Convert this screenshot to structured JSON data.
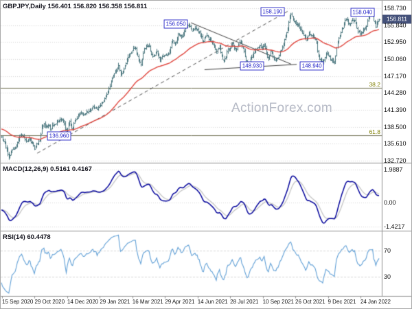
{
  "colors": {
    "background": "#ffffff",
    "border": "#a8a8a8",
    "bar": "#47747c",
    "ma_line": "#e0443c",
    "macd_line": "#00009a",
    "macd_signal": "#c4c4c4",
    "rsi_line": "#5f9fd6",
    "marker_border": "#3434c8",
    "marker_text": "#2222c8",
    "current_tag_bg": "#44517a",
    "fib_line": "#6f6f52",
    "fib_label": "#7f7f00",
    "grid": "#d6d6d6",
    "separator": "#8f8f8f",
    "trendline_dashed": "#4d4d4d",
    "trendline_solid": "#3c3c3c",
    "axis_text": "#111111",
    "title_text": "#15151f",
    "watermark": "#b6bac6"
  },
  "price_panel": {
    "title": "GBPJPY,Daily 156.401 156.820 156.358 156.811",
    "watermark": "ActionForex.com",
    "axis_ticks": [
      "158.730",
      "155.840",
      "152.950",
      "150.060",
      "147.170",
      "144.280",
      "141.390",
      "138.500",
      "135.610",
      "132.720"
    ],
    "current_price": "156.811"
  },
  "macd_panel": {
    "title": "MACD(12,26,9) 0.5161 0.4167",
    "axis_ticks": [
      "1.9887",
      "0.00",
      "-1.4217"
    ]
  },
  "rsi_panel": {
    "title": "RSI(14) 60.4478",
    "axis_ticks": [
      "70",
      "30"
    ],
    "levels": [
      70,
      30
    ]
  },
  "x_axis": {
    "labels": [
      "15 Sep 2020",
      "29 Oct 2020",
      "14 Dec 2020",
      "29 Jan 2021",
      "16 Mar 2021",
      "29 Apr 2021",
      "14 Jun 2021",
      "28 Jul 2021",
      "10 Sep 2021",
      "26 Oct 2021",
      "9 Dec 2021",
      "24 Jan 2022"
    ]
  },
  "chart_data": {
    "type": "candlestick",
    "type_note": "MT4-style daily OHLC bar chart with MACD and RSI sub-panels; close_anchors are sampled closes [t 0..1, price]",
    "title": "GBPJPY,Daily",
    "ylim": [
      132.4,
      159.2
    ],
    "y_tick_labels": [
      "158.730",
      "155.840",
      "152.950",
      "150.060",
      "147.170",
      "144.280",
      "141.390",
      "138.500",
      "135.610",
      "132.720"
    ],
    "x_tick_labels": [
      "15 Sep 2020",
      "29 Oct 2020",
      "14 Dec 2020",
      "29 Jan 2021",
      "16 Mar 2021",
      "29 Apr 2021",
      "14 Jun 2021",
      "28 Jul 2021",
      "10 Sep 2021",
      "26 Oct 2021",
      "9 Dec 2021",
      "24 Jan 2022"
    ],
    "ohlc_current": {
      "open": 156.401,
      "high": 156.82,
      "low": 156.358,
      "close": 156.811
    },
    "close_anchors": [
      [
        0.0,
        136.8
      ],
      [
        0.012,
        135.0
      ],
      [
        0.02,
        133.2
      ],
      [
        0.028,
        134.6
      ],
      [
        0.039,
        135.2
      ],
      [
        0.046,
        136.5
      ],
      [
        0.052,
        137.1
      ],
      [
        0.06,
        136.7
      ],
      [
        0.068,
        136.0
      ],
      [
        0.074,
        136.6
      ],
      [
        0.082,
        135.5
      ],
      [
        0.088,
        134.8
      ],
      [
        0.093,
        135.5
      ],
      [
        0.101,
        136.2
      ],
      [
        0.107,
        138.4
      ],
      [
        0.112,
        139.0
      ],
      [
        0.117,
        138.3
      ],
      [
        0.125,
        138.8
      ],
      [
        0.131,
        137.9
      ],
      [
        0.136,
        138.9
      ],
      [
        0.142,
        138.9
      ],
      [
        0.15,
        139.4
      ],
      [
        0.159,
        139.9
      ],
      [
        0.167,
        139.1
      ],
      [
        0.172,
        136.96
      ],
      [
        0.18,
        139.8
      ],
      [
        0.188,
        137.9
      ],
      [
        0.194,
        139.7
      ],
      [
        0.205,
        140.5
      ],
      [
        0.21,
        141.1
      ],
      [
        0.218,
        140.5
      ],
      [
        0.229,
        141.2
      ],
      [
        0.237,
        141.5
      ],
      [
        0.245,
        141.9
      ],
      [
        0.253,
        141.5
      ],
      [
        0.262,
        142.2
      ],
      [
        0.27,
        142.9
      ],
      [
        0.283,
        144.5
      ],
      [
        0.294,
        147.0
      ],
      [
        0.31,
        148.9
      ],
      [
        0.316,
        147.1
      ],
      [
        0.327,
        149.0
      ],
      [
        0.335,
        150.4
      ],
      [
        0.343,
        151.1
      ],
      [
        0.35,
        151.8
      ],
      [
        0.355,
        151.9
      ],
      [
        0.363,
        149.9
      ],
      [
        0.369,
        149.2
      ],
      [
        0.377,
        151.8
      ],
      [
        0.39,
        152.4
      ],
      [
        0.401,
        150.3
      ],
      [
        0.412,
        151.4
      ],
      [
        0.42,
        149.9
      ],
      [
        0.425,
        150.5
      ],
      [
        0.433,
        150.8
      ],
      [
        0.444,
        151.1
      ],
      [
        0.452,
        153.3
      ],
      [
        0.46,
        152.5
      ],
      [
        0.468,
        154.4
      ],
      [
        0.479,
        153.9
      ],
      [
        0.487,
        155.3
      ],
      [
        0.495,
        156.02
      ],
      [
        0.504,
        154.9
      ],
      [
        0.512,
        155.4
      ],
      [
        0.52,
        155.0
      ],
      [
        0.528,
        154.2
      ],
      [
        0.533,
        152.9
      ],
      [
        0.542,
        154.2
      ],
      [
        0.552,
        153.4
      ],
      [
        0.563,
        152.4
      ],
      [
        0.568,
        151.2
      ],
      [
        0.577,
        152.3
      ],
      [
        0.587,
        149.6
      ],
      [
        0.593,
        150.2
      ],
      [
        0.598,
        151.5
      ],
      [
        0.606,
        151.9
      ],
      [
        0.611,
        152.8
      ],
      [
        0.619,
        151.6
      ],
      [
        0.633,
        153.1
      ],
      [
        0.643,
        151.2
      ],
      [
        0.651,
        148.95
      ],
      [
        0.667,
        151.0
      ],
      [
        0.676,
        151.9
      ],
      [
        0.684,
        152.3
      ],
      [
        0.69,
        152.0
      ],
      [
        0.695,
        152.7
      ],
      [
        0.706,
        149.9
      ],
      [
        0.712,
        151.5
      ],
      [
        0.723,
        149.7
      ],
      [
        0.734,
        150.4
      ],
      [
        0.746,
        152.7
      ],
      [
        0.757,
        154.9
      ],
      [
        0.765,
        158.0
      ],
      [
        0.768,
        157.4
      ],
      [
        0.776,
        156.3
      ],
      [
        0.787,
        155.8
      ],
      [
        0.798,
        154.3
      ],
      [
        0.806,
        153.3
      ],
      [
        0.814,
        154.5
      ],
      [
        0.824,
        154.0
      ],
      [
        0.832,
        153.6
      ],
      [
        0.837,
        151.2
      ],
      [
        0.843,
        150.1
      ],
      [
        0.851,
        149.3
      ],
      [
        0.859,
        151.2
      ],
      [
        0.863,
        150.9
      ],
      [
        0.87,
        150.2
      ],
      [
        0.876,
        149.8
      ],
      [
        0.882,
        149.3
      ],
      [
        0.885,
        151.0
      ],
      [
        0.89,
        153.0
      ],
      [
        0.898,
        154.6
      ],
      [
        0.903,
        155.3
      ],
      [
        0.909,
        156.4
      ],
      [
        0.911,
        157.1
      ],
      [
        0.92,
        155.7
      ],
      [
        0.928,
        156.7
      ],
      [
        0.936,
        156.6
      ],
      [
        0.943,
        154.9
      ],
      [
        0.949,
        154.4
      ],
      [
        0.957,
        155.0
      ],
      [
        0.966,
        155.6
      ],
      [
        0.971,
        157.2
      ],
      [
        0.979,
        157.6
      ],
      [
        0.984,
        157.8
      ],
      [
        0.986,
        156.6
      ],
      [
        0.992,
        155.6
      ],
      [
        0.995,
        156.2
      ],
      [
        1.0,
        156.81
      ]
    ],
    "markers": [
      {
        "text": "136.960",
        "t": 0.153,
        "price": 136.96
      },
      {
        "text": "156.050",
        "t": 0.462,
        "price": 156.05
      },
      {
        "text": "148.930",
        "t": 0.664,
        "price": 148.93
      },
      {
        "text": "158.190",
        "t": 0.718,
        "price": 158.19
      },
      {
        "text": "148.940",
        "t": 0.822,
        "price": 148.94
      },
      {
        "text": "158.040",
        "t": 0.956,
        "price": 158.04
      }
    ],
    "trendlines": [
      {
        "t1": 0.095,
        "p1": 134.0,
        "t2": 0.762,
        "p2": 158.35,
        "style": "dashed"
      },
      {
        "t1": 0.502,
        "p1": 156.25,
        "t2": 0.767,
        "p2": 149.2,
        "style": "solid"
      },
      {
        "t1": 0.538,
        "p1": 148.25,
        "t2": 0.782,
        "p2": 149.15,
        "style": "solid"
      }
    ],
    "fib_levels": [
      {
        "label": "38.2",
        "price": 145.11
      },
      {
        "label": "61.8",
        "price": 137.02
      }
    ],
    "indicators": {
      "ma": {
        "type": "EMA",
        "period": 55,
        "color": "#e0443c"
      },
      "macd": {
        "fast": 12,
        "slow": 26,
        "signal": 9,
        "current_macd": 0.5161,
        "current_signal": 0.4167,
        "ylim": [
          -1.4217,
          1.9887
        ]
      },
      "rsi": {
        "period": 14,
        "current": 60.4478,
        "levels": [
          70,
          30
        ],
        "ylim": [
          0,
          100
        ]
      }
    }
  }
}
